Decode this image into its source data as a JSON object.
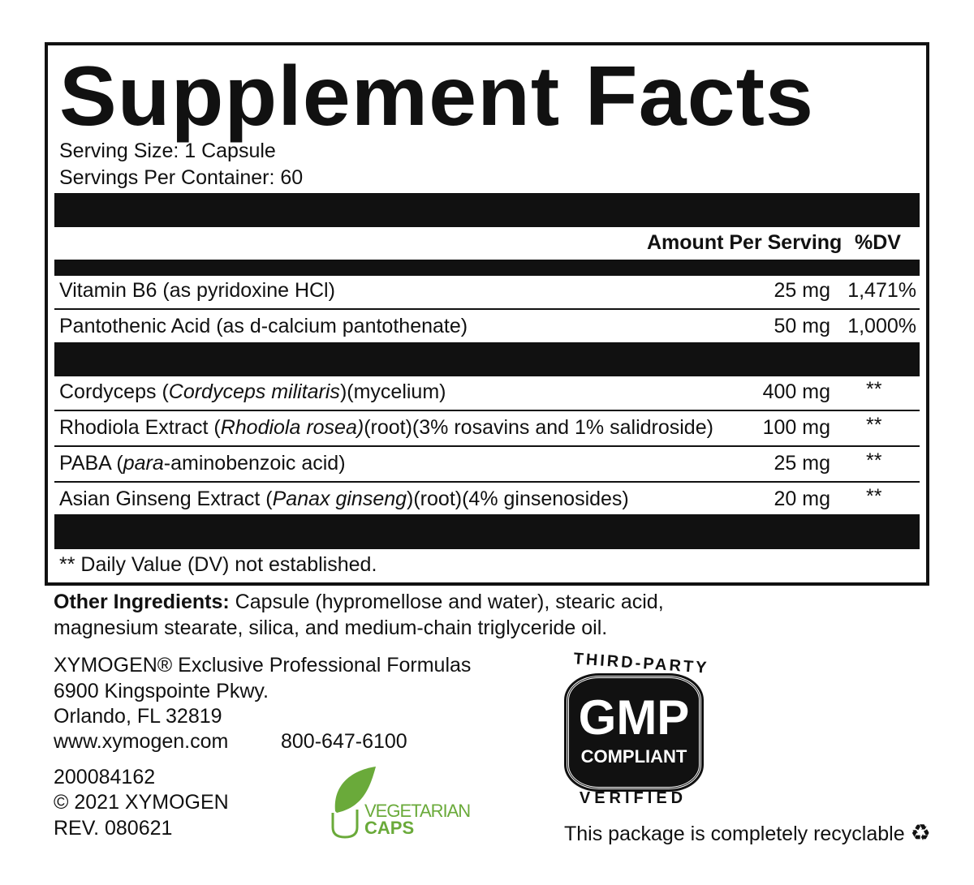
{
  "title": "Supplement Facts",
  "serving_size": "Serving Size: 1 Capsule",
  "servings_per_container": "Servings Per Container: 60",
  "header": {
    "amount": "Amount Per Serving",
    "dv": "%DV"
  },
  "vitamins": [
    {
      "name": "Vitamin B6 (as pyridoxine HCl)",
      "amount": "25 mg",
      "dv": "1,471%"
    },
    {
      "name": "Pantothenic Acid (as d-calcium pantothenate)",
      "amount": "50 mg",
      "dv": "1,000%"
    }
  ],
  "botanicals": [
    {
      "pre": "Cordyceps (",
      "italic": "Cordyceps militaris",
      "post": ")(mycelium)",
      "amount": "400 mg",
      "dv": "**"
    },
    {
      "pre": "Rhodiola Extract (",
      "italic": "Rhodiola rosea)",
      "post": "(root)(3% rosavins and 1% salidroside)",
      "amount": "100 mg",
      "dv": "**"
    },
    {
      "pre": "PABA (",
      "italic": "para",
      "post": "-aminobenzoic acid)",
      "amount": "25 mg",
      "dv": "**"
    },
    {
      "pre": "Asian Ginseng Extract (",
      "italic": "Panax ginseng",
      "post": ")(root)(4% ginsenosides)",
      "amount": "20 mg",
      "dv": "**"
    }
  ],
  "footnote": "** Daily Value (DV) not established.",
  "other_label": "Other Ingredients:",
  "other_line1": " Capsule (hypromellose and water), stearic acid,",
  "other_line2": "magnesium stearate, silica, and medium-chain triglyceride oil.",
  "company": {
    "line1": "XYMOGEN® Exclusive Professional Formulas",
    "line2": "6900 Kingspointe Pkwy.",
    "line3": "Orlando, FL 32819",
    "website": "www.xymogen.com",
    "phone": "800-647-6100",
    "code": "200084162",
    "copyright": "© 2021 XYMOGEN",
    "rev": "REV. 080621"
  },
  "veg_badge": {
    "line1": "VEGETARIAN",
    "line2": "CAPS",
    "color": "#6aaa3a"
  },
  "gmp_badge": {
    "top": "THIRD-PARTY",
    "main": "GMP",
    "sub": "COMPLIANT",
    "bottom": "VERIFIED"
  },
  "recycle_text": "This package is completely recyclable"
}
